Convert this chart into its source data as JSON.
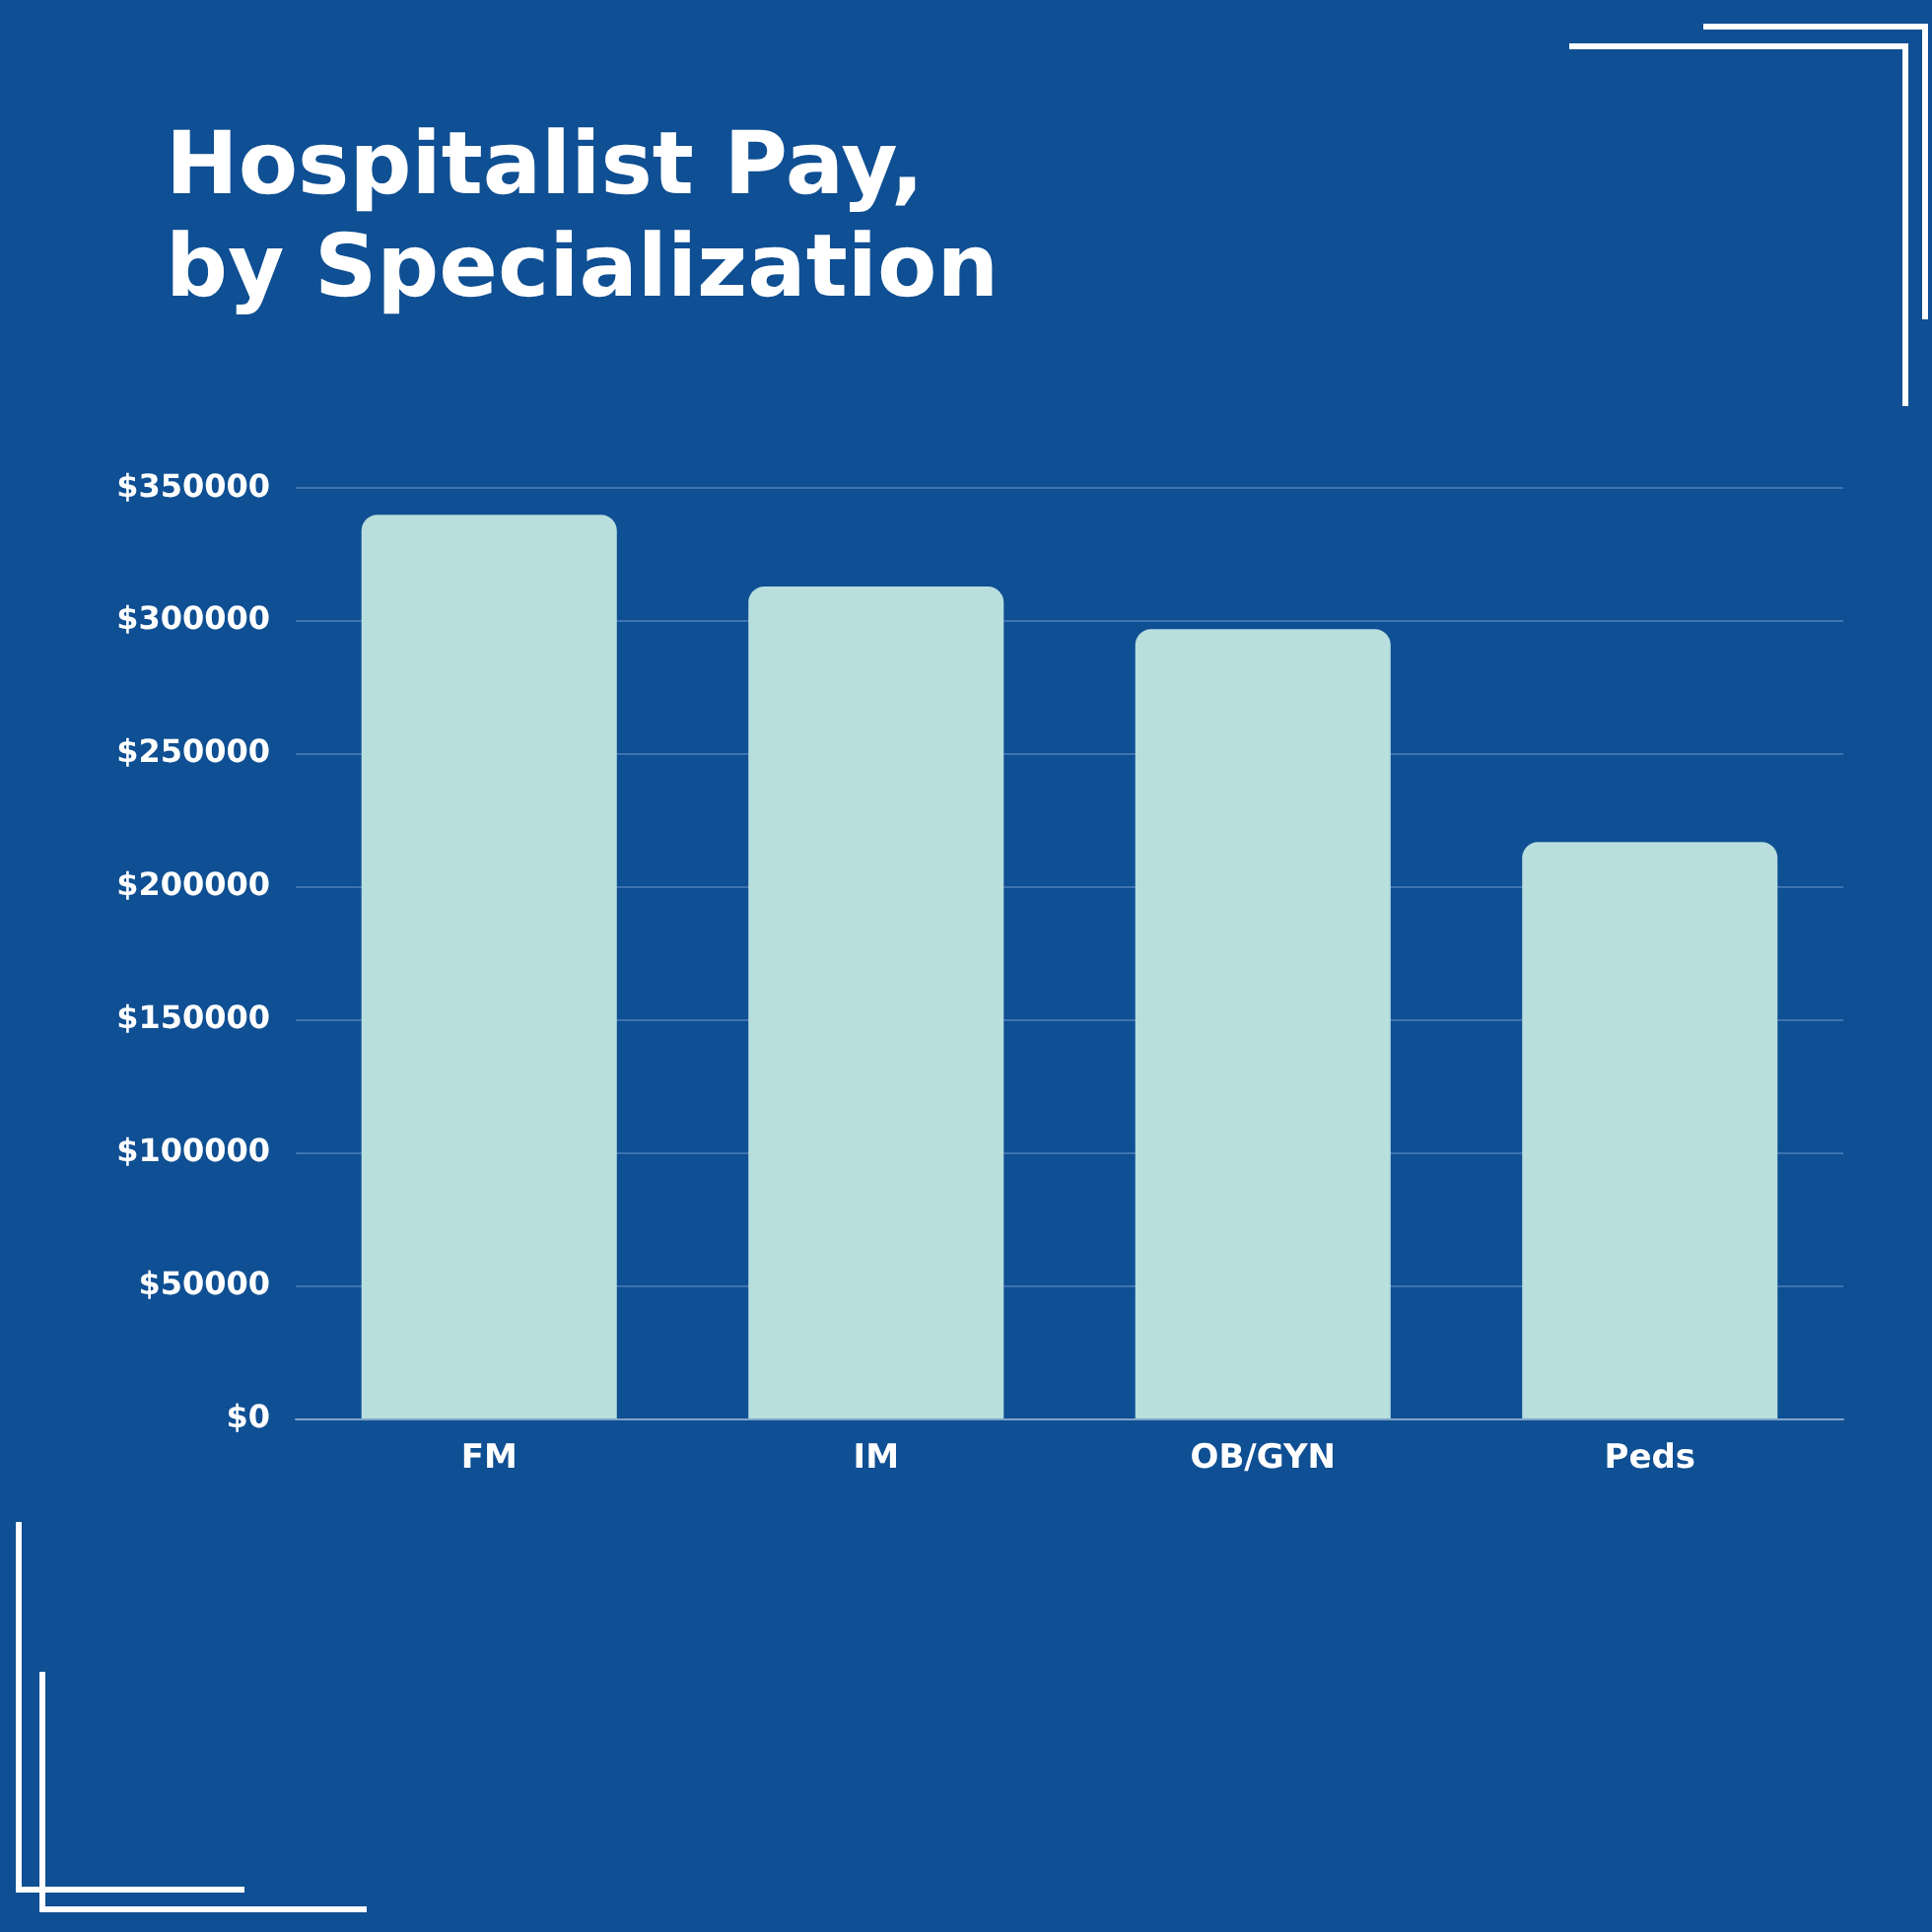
{
  "chart_data": {
    "type": "bar",
    "title": "Hospitalist Pay,\nby Specialization",
    "categories": [
      "FM",
      "IM",
      "OB/GYN",
      "Peds"
    ],
    "values": [
      340000,
      313000,
      297000,
      217000
    ],
    "color": "#b8dedd",
    "ylim": [
      0,
      350000
    ],
    "yticks": [
      {
        "value": 0,
        "label": "$0"
      },
      {
        "value": 50000,
        "label": "$50000"
      },
      {
        "value": 100000,
        "label": "$100000"
      },
      {
        "value": 150000,
        "label": "$150000"
      },
      {
        "value": 200000,
        "label": "$200000"
      },
      {
        "value": 250000,
        "label": "$250000"
      },
      {
        "value": 300000,
        "label": "$300000"
      },
      {
        "value": 350000,
        "label": "$350000"
      }
    ],
    "grid": "y",
    "legend": false
  }
}
